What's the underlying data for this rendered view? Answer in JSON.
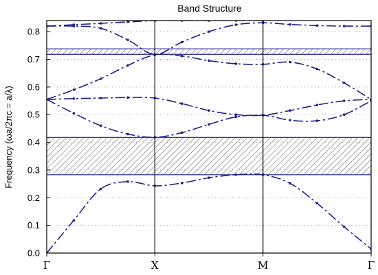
{
  "chart_data": {
    "type": "line",
    "title": "Band Structure",
    "xlabel": "",
    "ylabel": "Frequency (ωa/2πc = a/λ)",
    "xlim": [
      0,
      3
    ],
    "ylim": [
      0,
      0.84
    ],
    "yticks": [
      0.0,
      0.1,
      0.2,
      0.3,
      0.4,
      0.5,
      0.6,
      0.7,
      0.8
    ],
    "ytick_labels": [
      "0.0",
      "0.1",
      "0.2",
      "0.3",
      "0.4",
      "0.5",
      "0.6",
      "0.7",
      "0.8"
    ],
    "xticks": [
      0,
      1,
      2,
      3
    ],
    "xtick_labels": [
      "Γ",
      "X",
      "M",
      "Γ"
    ],
    "grid": true,
    "line_color": "#1f1f8f",
    "gap_color": "#1f1f8f",
    "band_gaps": [
      {
        "ymin": 0.283,
        "ymax": 0.418
      },
      {
        "ymin": 0.718,
        "ymax": 0.738
      }
    ],
    "series": [
      {
        "x": [
          0,
          0.25,
          0.5,
          0.75,
          1.0,
          1.25,
          1.5,
          1.75,
          2.0,
          2.25,
          2.5,
          2.75,
          3.0
        ],
        "values": [
          0.0,
          0.118,
          0.232,
          0.258,
          0.243,
          0.253,
          0.272,
          0.283,
          0.283,
          0.252,
          0.18,
          0.095,
          0.015
        ]
      },
      {
        "x": [
          0,
          0.25,
          0.5,
          0.75,
          1.0,
          1.25,
          1.5,
          1.75,
          2.0,
          2.25,
          2.5,
          2.75,
          3.0
        ],
        "values": [
          0.555,
          0.505,
          0.46,
          0.43,
          0.418,
          0.435,
          0.465,
          0.492,
          0.498,
          0.48,
          0.478,
          0.5,
          0.55
        ]
      },
      {
        "x": [
          0,
          0.25,
          0.5,
          0.75,
          1.0,
          1.25,
          1.5,
          1.75,
          2.0,
          2.25,
          2.5,
          2.75,
          3.0
        ],
        "values": [
          0.555,
          0.558,
          0.56,
          0.562,
          0.56,
          0.54,
          0.515,
          0.5,
          0.498,
          0.515,
          0.535,
          0.55,
          0.555
        ]
      },
      {
        "x": [
          0,
          0.25,
          0.5,
          0.75,
          1.0,
          1.25,
          1.5,
          1.75,
          2.0,
          2.25,
          2.5,
          2.75,
          3.0
        ],
        "values": [
          0.555,
          0.59,
          0.63,
          0.678,
          0.716,
          0.712,
          0.695,
          0.684,
          0.682,
          0.69,
          0.665,
          0.615,
          0.555
        ]
      },
      {
        "x": [
          0,
          0.25,
          0.5,
          0.75,
          1.0,
          1.25,
          1.5,
          1.75,
          2.0,
          2.25,
          2.5,
          2.75,
          3.0
        ],
        "values": [
          0.82,
          0.82,
          0.812,
          0.77,
          0.718,
          0.762,
          0.8,
          0.825,
          0.832,
          0.826,
          0.822,
          0.82,
          0.82
        ]
      },
      {
        "x": [
          0,
          0.25,
          0.5,
          0.75,
          1.0,
          1.25,
          1.5,
          1.75,
          2.0
        ],
        "values": [
          0.82,
          0.825,
          0.83,
          0.835,
          0.84,
          0.84,
          0.84,
          0.84,
          0.84
        ]
      }
    ]
  }
}
